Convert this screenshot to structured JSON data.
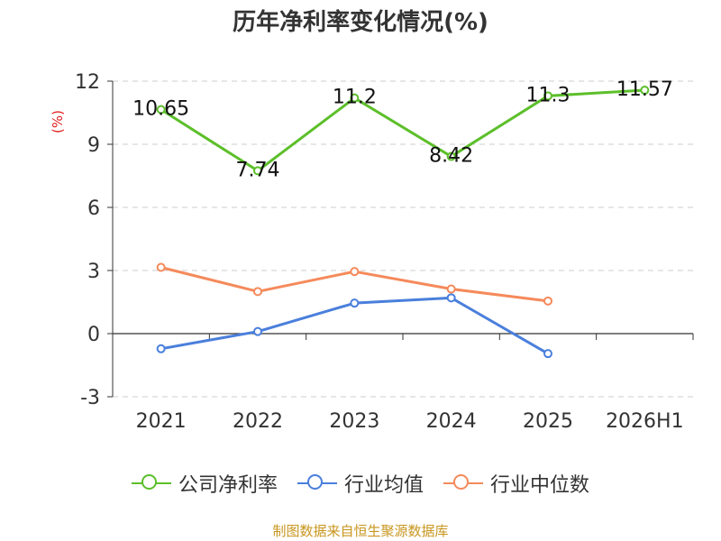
{
  "title": "历年净利率变化情况(%)",
  "source": "制图数据来自恒生聚源数据库",
  "chart_data": {
    "type": "line",
    "title": "历年净利率变化情况(%)",
    "ylabel": "(%)",
    "xlabel": "",
    "categories": [
      "2021",
      "2022",
      "2023",
      "2024",
      "2025",
      "2026H1"
    ],
    "ylim": [
      -3,
      12
    ],
    "yticks": [
      -3,
      0,
      3,
      6,
      9,
      12
    ],
    "grid": true,
    "legend_position": "bottom",
    "series": [
      {
        "name": "公司净利率",
        "color": "#5cbf2a",
        "labeled": true,
        "values": [
          10.65,
          7.74,
          11.2,
          8.42,
          11.3,
          11.57
        ],
        "labels": [
          "10.65",
          "7.74",
          "11.2",
          "8.42",
          "11.3",
          "11.57"
        ]
      },
      {
        "name": "行业均值",
        "color": "#4a7fdc",
        "labeled": false,
        "values": [
          -0.72,
          0.1,
          1.45,
          1.7,
          -0.95,
          null
        ]
      },
      {
        "name": "行业中位数",
        "color": "#f58a5b",
        "labeled": false,
        "values": [
          3.15,
          2.0,
          2.95,
          2.12,
          1.55,
          null
        ]
      }
    ]
  }
}
